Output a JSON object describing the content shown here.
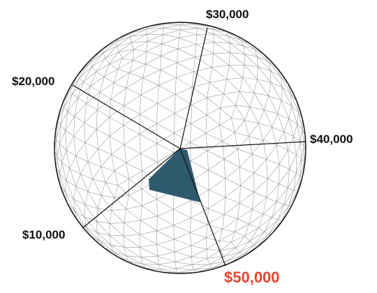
{
  "colors": {
    "grid": "#9a9a9a",
    "outline": "#111111",
    "spokes": "#111111",
    "fill": "#2e5a6e",
    "label": "#111111",
    "highlight_label": "#e8442e"
  },
  "labels": {
    "l10000": "$10,000",
    "l20000": "$20,000",
    "l30000": "$30,000",
    "l40000": "$40,000",
    "l50000": "$50,000"
  }
}
